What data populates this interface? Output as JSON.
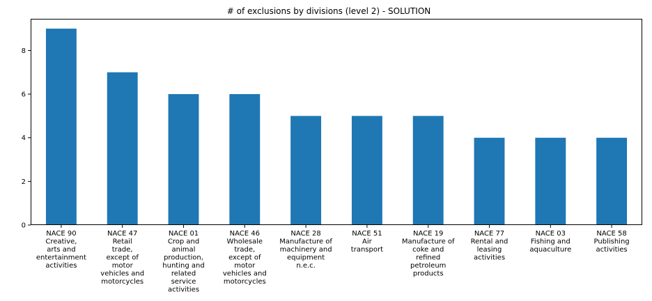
{
  "chart_data": {
    "type": "bar",
    "title": "# of exclusions by divisions (level 2) - SOLUTION",
    "xlabel": "",
    "ylabel": "",
    "ylim": [
      0,
      9.45
    ],
    "yticks": [
      0,
      2,
      4,
      6,
      8
    ],
    "grid": false,
    "bar_color": "#1f77b4",
    "categories": [
      [
        "NACE 90",
        "Creative,",
        "arts and",
        "entertainment",
        "activities"
      ],
      [
        "NACE 47",
        "Retail",
        "trade,",
        "except of",
        "motor",
        "vehicles and",
        "motorcycles"
      ],
      [
        "NACE 01",
        "Crop and",
        "animal",
        "production,",
        "hunting and",
        "related",
        "service",
        "activities"
      ],
      [
        "NACE 46",
        "Wholesale",
        "trade,",
        "except of",
        "motor",
        "vehicles and",
        "motorcycles"
      ],
      [
        "NACE 28",
        "Manufacture of",
        "machinery and",
        "equipment",
        "n.e.c."
      ],
      [
        "NACE 51",
        "Air",
        "transport"
      ],
      [
        "NACE 19",
        "Manufacture of",
        "coke and",
        "refined",
        "petroleum",
        "products"
      ],
      [
        "NACE 77",
        "Rental and",
        "leasing",
        "activities"
      ],
      [
        "NACE 03",
        "Fishing and",
        "aquaculture"
      ],
      [
        "NACE 58",
        "Publishing",
        "activities"
      ]
    ],
    "values": [
      9,
      7,
      6,
      6,
      5,
      5,
      5,
      4,
      4,
      4
    ]
  }
}
